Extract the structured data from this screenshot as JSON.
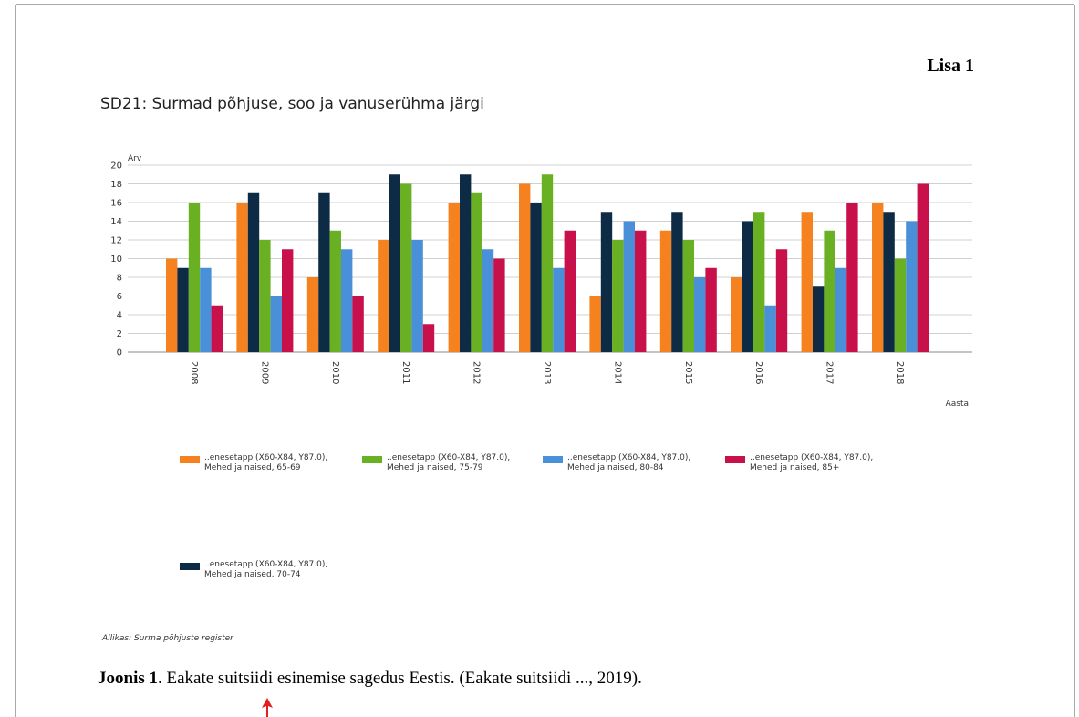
{
  "appendix_label": "Lisa 1",
  "chart_data": {
    "type": "bar",
    "title": "SD21: Surmad põhjuse, soo ja vanuserühma järgi",
    "y_label": "Arv",
    "x_label": "Aasta",
    "categories": [
      "2008",
      "2009",
      "2010",
      "2011",
      "2012",
      "2013",
      "2014",
      "2015",
      "2016",
      "2017",
      "2018"
    ],
    "series": [
      {
        "name": "..enesetapp (X60-X84, Y87.0), Mehed ja naised, 65-69",
        "color": "#f5821f",
        "values": [
          10,
          16,
          8,
          12,
          16,
          18,
          6,
          13,
          8,
          15,
          16
        ]
      },
      {
        "name": "..enesetapp (X60-X84, Y87.0), Mehed ja naised, 70-74",
        "color": "#0d2b45",
        "values": [
          9,
          17,
          17,
          19,
          19,
          16,
          15,
          15,
          14,
          7,
          15
        ]
      },
      {
        "name": "..enesetapp (X60-X84, Y87.0), Mehed ja naised, 75-79",
        "color": "#6ab023",
        "values": [
          16,
          12,
          13,
          18,
          17,
          19,
          12,
          12,
          15,
          13,
          10
        ]
      },
      {
        "name": "..enesetapp (X60-X84, Y87.0), Mehed ja naised, 80-84",
        "color": "#4a90d9",
        "values": [
          9,
          6,
          11,
          12,
          11,
          9,
          14,
          8,
          5,
          9,
          14
        ]
      },
      {
        "name": "..enesetapp (X60-X84, Y87.0), Mehed ja naised, 85+",
        "color": "#c8104a",
        "values": [
          5,
          11,
          6,
          3,
          10,
          13,
          13,
          9,
          11,
          16,
          18
        ]
      }
    ],
    "ylim": [
      0,
      20
    ],
    "yticks": [
      0,
      2,
      4,
      6,
      8,
      10,
      12,
      14,
      16,
      18,
      20
    ],
    "grid": true
  },
  "source": "Allikas: Surma põhjuste register",
  "caption": {
    "label": "Joonis 1",
    "text": ". Eakate suitsiidi esinemise sagedus Eestis. (Eakate suitsiidi ..., 2019)."
  }
}
